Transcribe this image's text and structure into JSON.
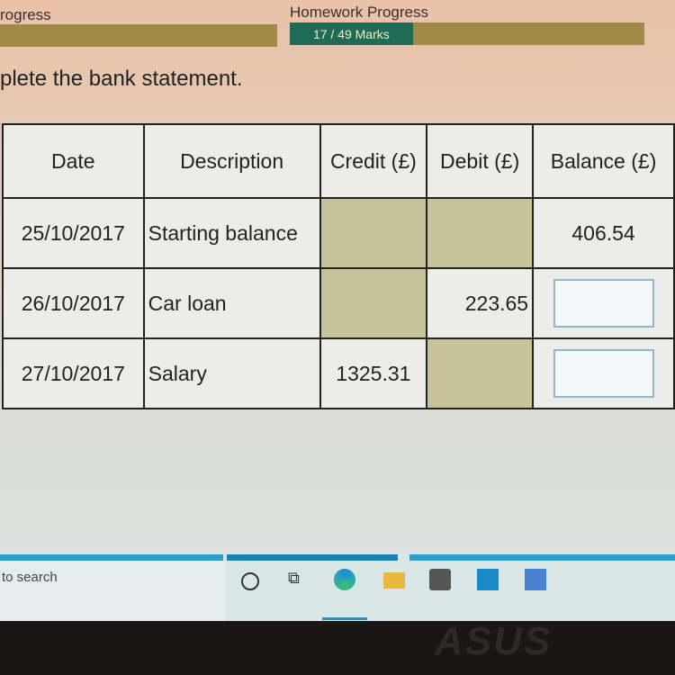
{
  "progress": {
    "left_label": "rogress",
    "homework_label": "Homework Progress",
    "homework_marks": "17 / 49 Marks",
    "homework_fraction": 0.347
  },
  "instruction": "plete the bank statement.",
  "table": {
    "headers": [
      "Date",
      "Description",
      "Credit (£)",
      "Debit (£)",
      "Balance (£)"
    ],
    "rows": [
      {
        "date": "25/10/2017",
        "description": "Starting balance",
        "credit": "",
        "debit": "",
        "balance": "406.54"
      },
      {
        "date": "26/10/2017",
        "description": "Car loan",
        "credit": "",
        "debit": "223.65",
        "balance": ""
      },
      {
        "date": "27/10/2017",
        "description": "Salary",
        "credit": "1325.31",
        "debit": "",
        "balance": ""
      }
    ]
  },
  "taskbar": {
    "search_placeholder": "to search",
    "icons": [
      "cortana-circle-icon",
      "task-view-icon",
      "edge-icon",
      "file-explorer-icon",
      "store-icon",
      "mail-icon",
      "app-icon"
    ]
  },
  "bezel_logo": "ASUS"
}
